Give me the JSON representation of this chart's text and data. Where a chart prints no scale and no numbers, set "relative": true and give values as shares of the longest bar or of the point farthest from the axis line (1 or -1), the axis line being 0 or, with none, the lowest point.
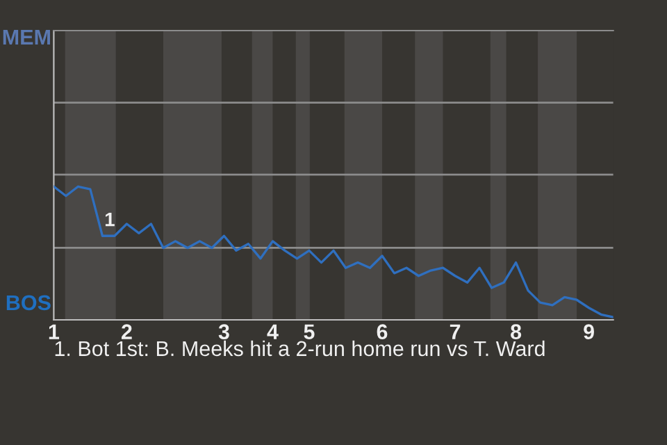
{
  "chart_data": {
    "type": "line",
    "categories": [
      "1",
      null,
      null,
      null,
      null,
      null,
      "2",
      null,
      null,
      null,
      null,
      null,
      null,
      null,
      "3",
      null,
      null,
      null,
      "4",
      null,
      null,
      "5",
      null,
      null,
      null,
      null,
      null,
      "6",
      null,
      null,
      null,
      null,
      null,
      "7",
      null,
      null,
      null,
      null,
      "8",
      null,
      null,
      null,
      null,
      null,
      "9",
      null,
      null
    ],
    "relative": true,
    "series": [
      {
        "color": "#2f6fbf",
        "values": [
          1.0,
          0.93,
          1.0,
          0.98,
          0.63,
          0.63,
          0.72,
          0.65,
          0.72,
          0.54,
          0.59,
          0.54,
          0.59,
          0.54,
          0.63,
          0.52,
          0.57,
          0.46,
          0.59,
          0.52,
          0.46,
          0.52,
          0.43,
          0.52,
          0.39,
          0.43,
          0.39,
          0.48,
          0.35,
          0.39,
          0.33,
          0.37,
          0.39,
          0.33,
          0.28,
          0.39,
          0.24,
          0.28,
          0.43,
          0.22,
          0.13,
          0.11,
          0.17,
          0.15,
          0.09,
          0.04,
          0.02
        ]
      }
    ],
    "ref_lines": [
      {
        "axis": "y",
        "value": 0.54,
        "color": "#8c8c8c"
      },
      {
        "axis": "y",
        "value": 1.09,
        "color": "#8c8c8c"
      },
      {
        "axis": "y",
        "value": 1.63,
        "color": "#8c8c8c"
      }
    ],
    "annotations": [
      "MEM",
      "BOS",
      {
        "text": "1",
        "y": 0.63
      },
      "1. Bot 1st: B. Meeks hit a 2-run home run vs T. Ward"
    ],
    "marker": "none",
    "line_style": "solid"
  }
}
